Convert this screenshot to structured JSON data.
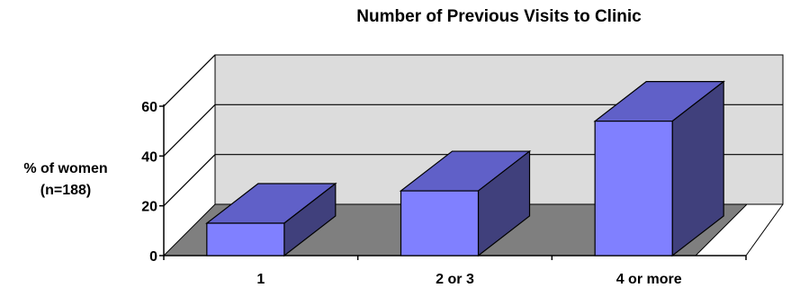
{
  "chart_data": {
    "type": "bar",
    "title": "Number of Previous Visits to Clinic",
    "ylabel_lines": [
      "% of women",
      "(n=188)"
    ],
    "xlabel": "",
    "categories": [
      "1",
      "2 or 3",
      "4 or more"
    ],
    "values": [
      13,
      26,
      54
    ],
    "ylim": [
      0,
      60
    ],
    "yticks": [
      0,
      20,
      40,
      60
    ],
    "grid": true,
    "three_d": true,
    "colors": {
      "bar_front": "#8080ff",
      "bar_top": "#6060c8",
      "bar_side": "#40407c",
      "back_wall": "#dcdcdc",
      "floor": "#7f7f7f",
      "outline": "#000000"
    }
  }
}
